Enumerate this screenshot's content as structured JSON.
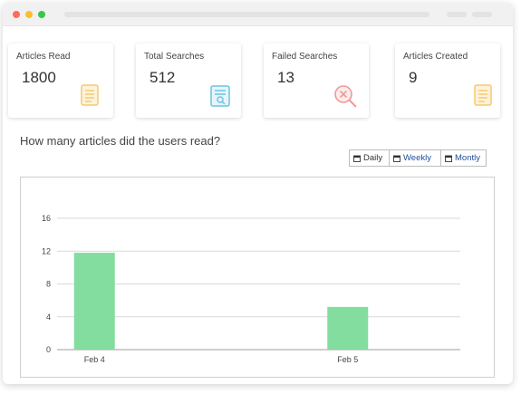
{
  "colors": {
    "bar": "#82dd9f",
    "grid": "#d9d9d9",
    "failed_icon": "#ef9a9a",
    "article_icon": "#f6c96e",
    "search_icon": "#6cc4e0",
    "toggle_active": "#1e4e9c"
  },
  "stats": [
    {
      "label": "Articles Read",
      "value": "1800",
      "icon": "document-icon"
    },
    {
      "label": "Total Searches",
      "value": "512",
      "icon": "document-search-icon"
    },
    {
      "label": "Failed Searches",
      "value": "13",
      "icon": "failed-search-icon"
    },
    {
      "label": "Articles Created",
      "value": "9",
      "icon": "document-icon"
    }
  ],
  "question": "How many articles did the users read?",
  "toggle": {
    "daily": "Daily",
    "weekly": "Weekly",
    "monthly": "Montly"
  },
  "chart_data": {
    "type": "bar",
    "categories": [
      "Feb 4",
      "Feb 5"
    ],
    "values": [
      11.8,
      5.2
    ],
    "title": "",
    "xlabel": "",
    "ylabel": "",
    "ylim": [
      0,
      16
    ],
    "yticks": [
      0,
      4,
      8,
      12,
      16
    ],
    "grid": true
  }
}
